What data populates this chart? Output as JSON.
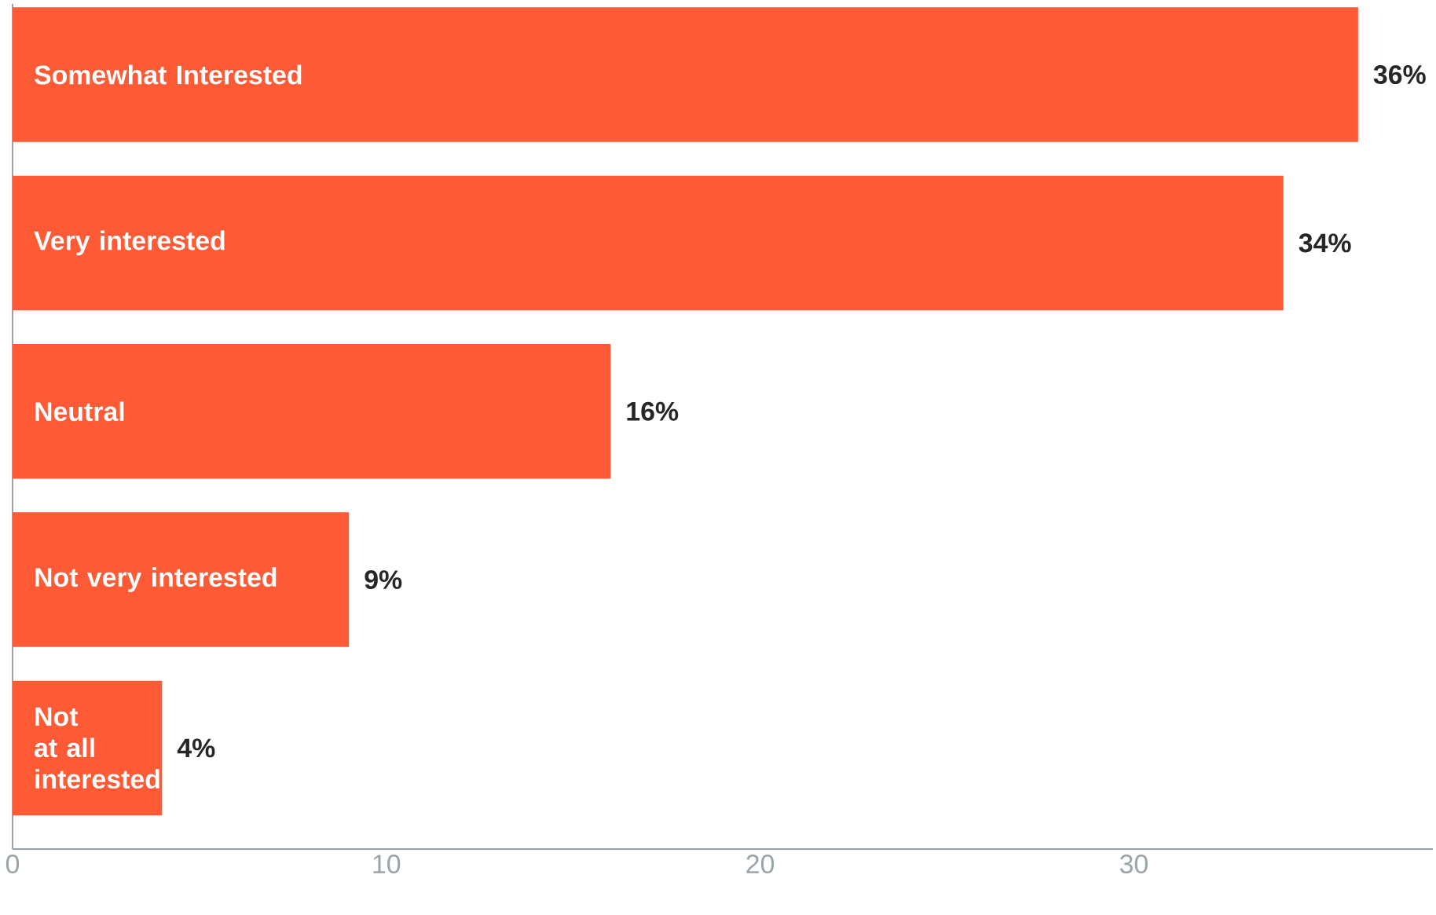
{
  "chart_data": {
    "type": "bar",
    "orientation": "horizontal",
    "categories": [
      "Somewhat Interested",
      "Very interested",
      "Neutral",
      "Not very interested",
      "Not at all interested"
    ],
    "values": [
      36,
      34,
      16,
      9,
      4
    ],
    "value_labels": [
      "36%",
      "34%",
      "16%",
      "9%",
      "4%"
    ],
    "color": "#fe5a36",
    "xlim": [
      0,
      38
    ],
    "xticks": [
      0,
      10,
      20,
      30
    ],
    "grid": false
  }
}
